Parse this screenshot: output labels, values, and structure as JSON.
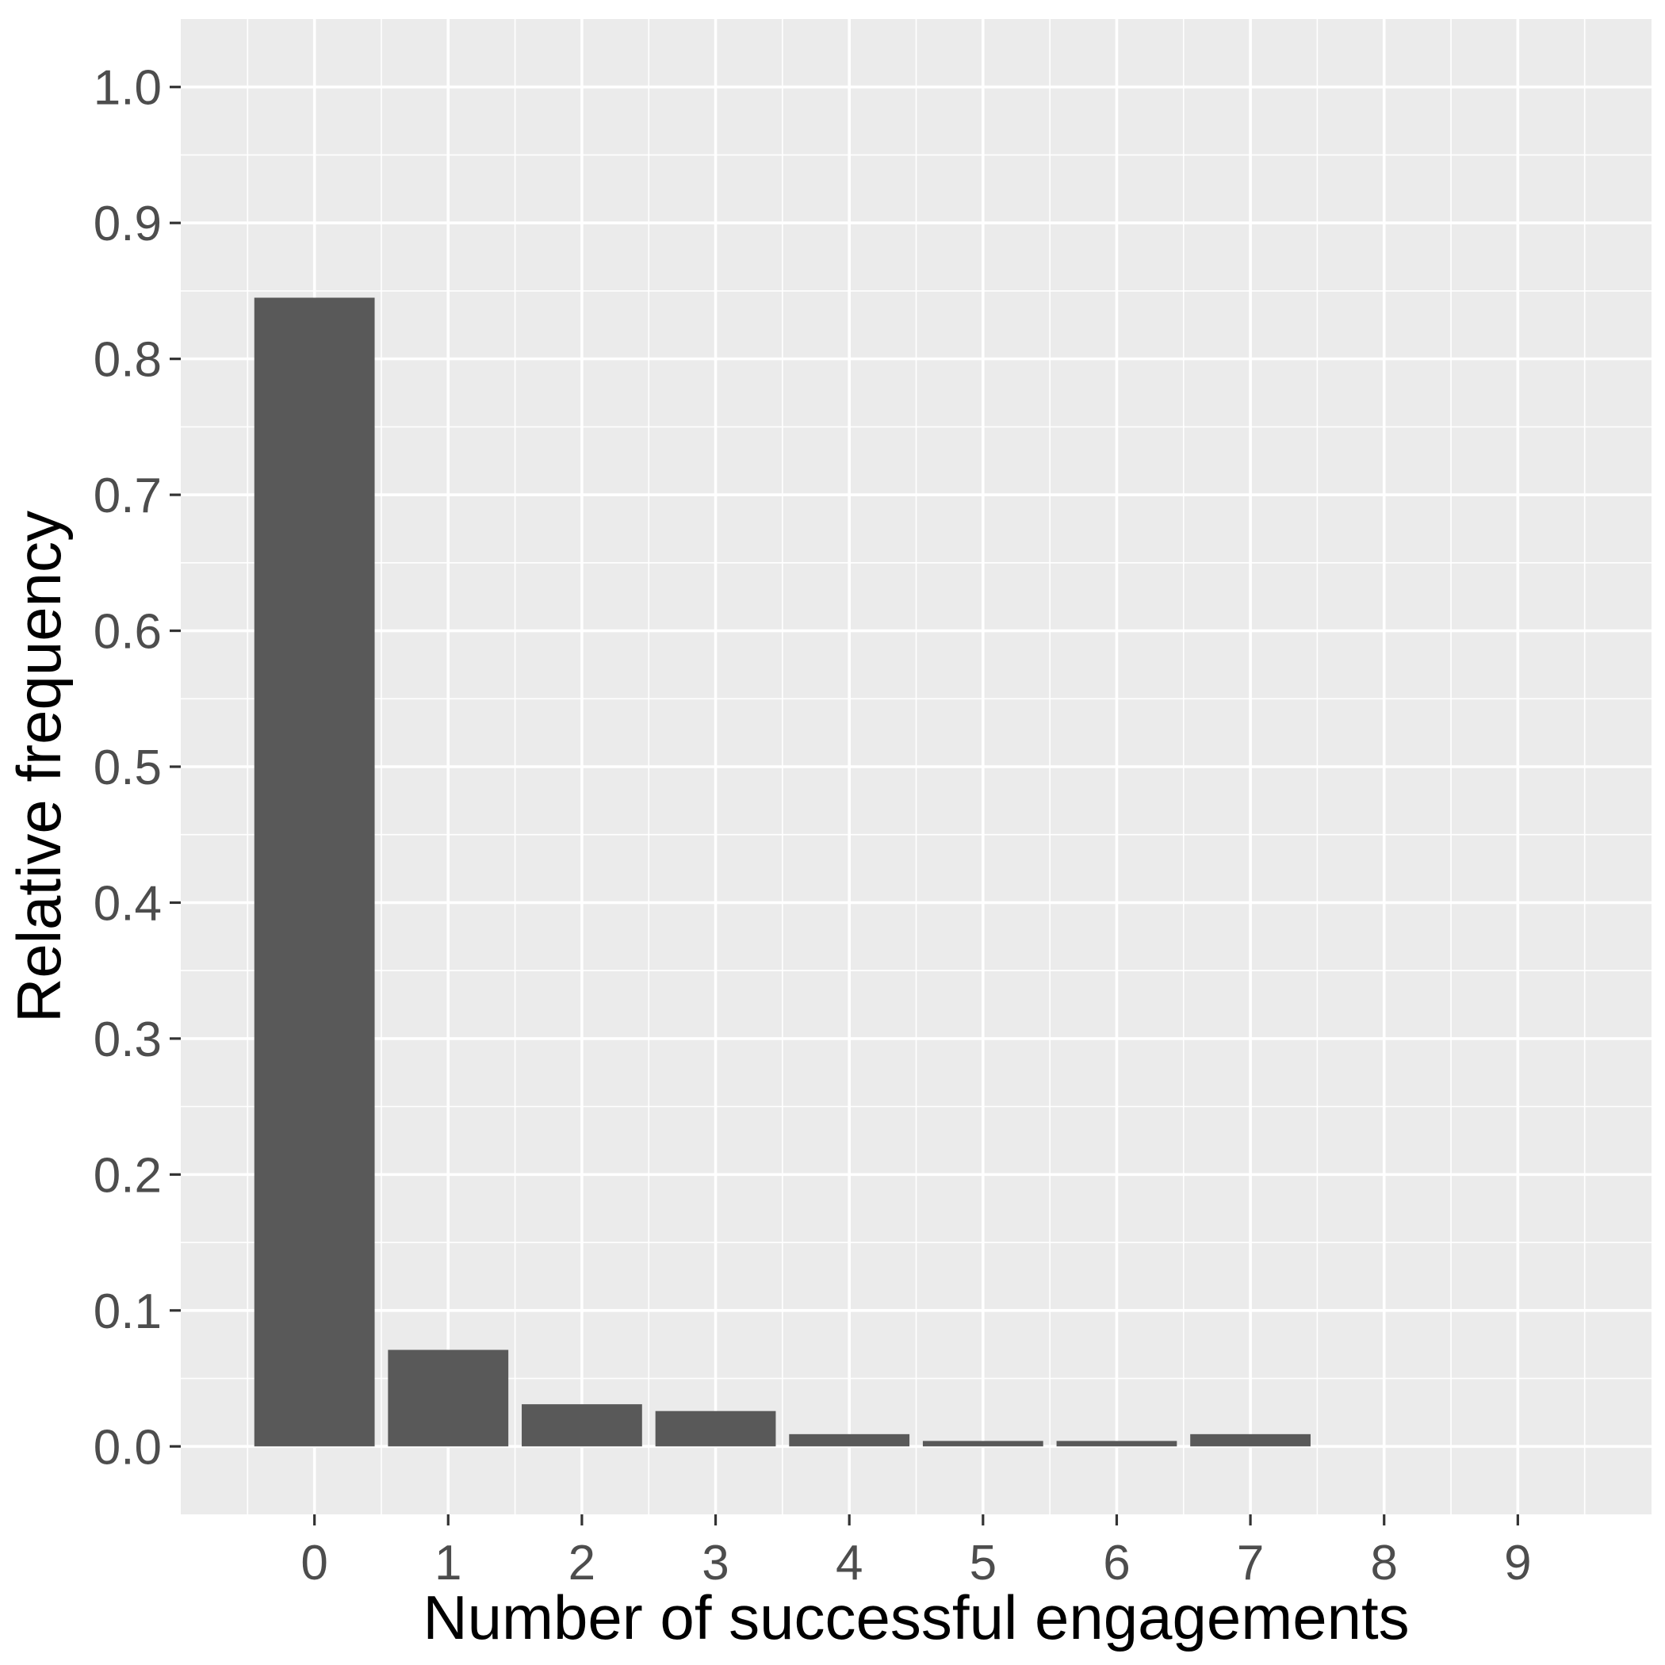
{
  "chart_data": {
    "type": "bar",
    "title": "",
    "xlabel": "Number of successful engagements",
    "ylabel": "Relative frequency",
    "categories": [
      "0",
      "1",
      "2",
      "3",
      "4",
      "5",
      "6",
      "7",
      "8",
      "9"
    ],
    "values": [
      0.845,
      0.071,
      0.031,
      0.026,
      0.009,
      0.004,
      0.004,
      0.009,
      0.0,
      0.0
    ],
    "y_ticks": [
      "0.0",
      "0.1",
      "0.2",
      "0.3",
      "0.4",
      "0.5",
      "0.6",
      "0.7",
      "0.8",
      "0.9",
      "1.0"
    ],
    "y_tick_values": [
      0,
      0.1,
      0.2,
      0.3,
      0.4,
      0.5,
      0.6,
      0.7,
      0.8,
      0.9,
      1.0
    ],
    "ylim": [
      -0.05,
      1.05
    ],
    "xlim": [
      -1,
      10
    ],
    "grid": true,
    "legend": "none",
    "colors": {
      "bar": "#595959",
      "panel": "#ebebeb",
      "grid": "#ffffff",
      "tick_label": "#4d4d4d",
      "axis_title": "#000000"
    }
  }
}
